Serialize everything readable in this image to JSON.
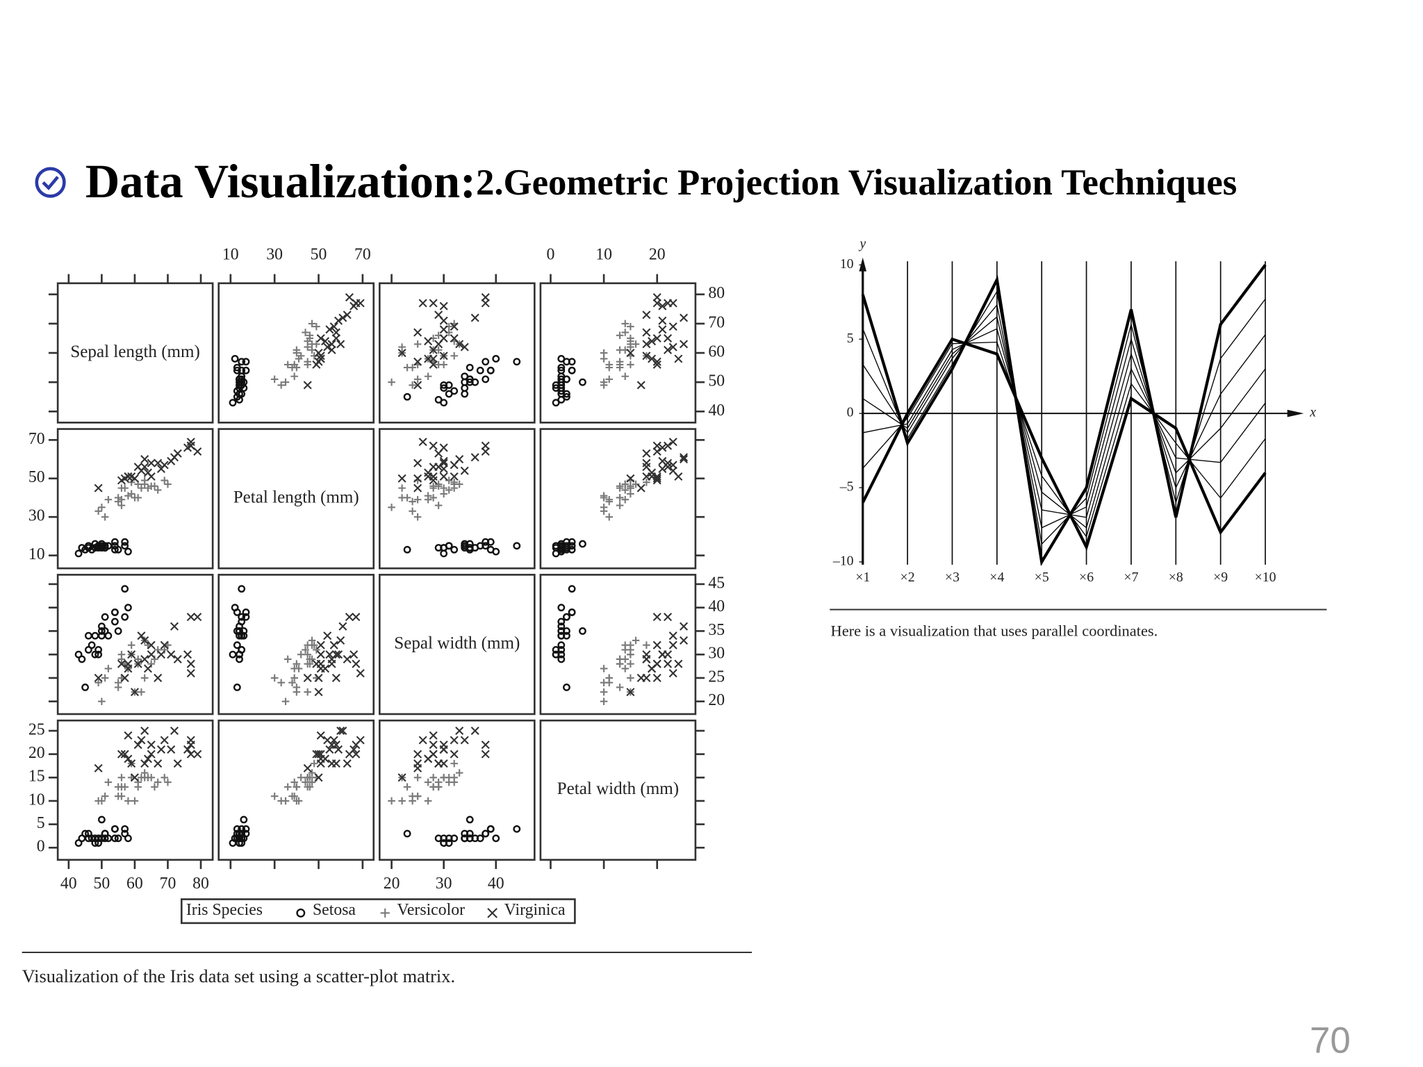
{
  "slide": {
    "title": "Data Visualization:",
    "subtitle": "2.Geometric Projection Visualization Techniques",
    "page_number": "70"
  },
  "chart_data": [
    {
      "type": "scatter-matrix",
      "variables": [
        {
          "name": "Sepal length (mm)",
          "xlim": [
            36.7,
            83.6
          ],
          "ylim": [
            36.2,
            83.8
          ],
          "xticks": [
            40,
            50,
            60,
            70,
            80
          ],
          "yticks": [
            40,
            50,
            60,
            70,
            80
          ]
        },
        {
          "name": "Petal length (mm)",
          "xlim": [
            4.6,
            75
          ],
          "ylim": [
            3.3,
            75.7
          ],
          "xticks": [
            10,
            30,
            50,
            70
          ],
          "yticks": [
            10,
            30,
            50,
            70
          ]
        },
        {
          "name": "Sepal width (mm)",
          "xlim": [
            17.7,
            47.4
          ],
          "ylim": [
            17.3,
            47
          ],
          "xticks": [
            20,
            30,
            40
          ],
          "yticks": [
            20,
            25,
            30,
            35,
            40,
            45
          ]
        },
        {
          "name": "Petal width (mm)",
          "xlim": [
            -1.9,
            27.2
          ],
          "ylim": [
            -2.6,
            27.2
          ],
          "xticks": [
            0,
            10,
            20
          ],
          "yticks": [
            0,
            5,
            10,
            15,
            20,
            25
          ]
        }
      ],
      "legend_title": "Iris Species",
      "species": [
        {
          "name": "Setosa",
          "marker": "circle",
          "color": "#111111",
          "points": [
            [
              51,
              14,
              35,
              2
            ],
            [
              49,
              14,
              30,
              2
            ],
            [
              47,
              13,
              32,
              2
            ],
            [
              46,
              15,
              31,
              2
            ],
            [
              50,
              14,
              36,
              2
            ],
            [
              54,
              17,
              39,
              4
            ],
            [
              46,
              14,
              34,
              3
            ],
            [
              50,
              15,
              34,
              2
            ],
            [
              44,
              14,
              29,
              2
            ],
            [
              49,
              15,
              31,
              1
            ],
            [
              54,
              15,
              37,
              2
            ],
            [
              48,
              16,
              34,
              2
            ],
            [
              48,
              14,
              30,
              1
            ],
            [
              43,
              11,
              30,
              1
            ],
            [
              58,
              12,
              40,
              2
            ],
            [
              57,
              15,
              44,
              4
            ],
            [
              54,
              13,
              39,
              4
            ],
            [
              51,
              14,
              35,
              3
            ],
            [
              57,
              17,
              38,
              3
            ],
            [
              51,
              15,
              38,
              3
            ],
            [
              45,
              13,
              23,
              3
            ],
            [
              50,
              16,
              35,
              6
            ],
            [
              52,
              15,
              34,
              2
            ],
            [
              55,
              13,
              35,
              2
            ]
          ]
        },
        {
          "name": "Versicolor",
          "marker": "plus",
          "color": "#7a7a7a",
          "points": [
            [
              70,
              47,
              32,
              14
            ],
            [
              64,
              45,
              32,
              15
            ],
            [
              69,
              49,
              31,
              15
            ],
            [
              55,
              40,
              23,
              13
            ],
            [
              65,
              46,
              28,
              15
            ],
            [
              57,
              45,
              28,
              13
            ],
            [
              63,
              47,
              33,
              16
            ],
            [
              49,
              33,
              24,
              10
            ],
            [
              66,
              46,
              29,
              13
            ],
            [
              52,
              39,
              27,
              14
            ],
            [
              50,
              35,
              20,
              10
            ],
            [
              59,
              42,
              30,
              15
            ],
            [
              60,
              40,
              22,
              10
            ],
            [
              61,
              47,
              29,
              14
            ],
            [
              56,
              36,
              29,
              13
            ],
            [
              67,
              44,
              31,
              14
            ],
            [
              56,
              45,
              30,
              15
            ],
            [
              58,
              41,
              27,
              10
            ],
            [
              62,
              45,
              22,
              15
            ],
            [
              56,
              39,
              25,
              11
            ],
            [
              59,
              48,
              32,
              18
            ],
            [
              61,
              40,
              28,
              13
            ],
            [
              63,
              49,
              25,
              15
            ],
            [
              55,
              38,
              24,
              11
            ],
            [
              51,
              30,
              25,
              11
            ]
          ]
        },
        {
          "name": "Virginica",
          "marker": "cross",
          "color": "#333333",
          "points": [
            [
              63,
              60,
              33,
              25
            ],
            [
              58,
              51,
              27,
              19
            ],
            [
              71,
              59,
              30,
              21
            ],
            [
              63,
              56,
              29,
              18
            ],
            [
              65,
              58,
              30,
              22
            ],
            [
              76,
              66,
              30,
              21
            ],
            [
              49,
              45,
              25,
              17
            ],
            [
              73,
              63,
              29,
              18
            ],
            [
              67,
              58,
              25,
              18
            ],
            [
              72,
              61,
              36,
              25
            ],
            [
              65,
              51,
              32,
              20
            ],
            [
              64,
              53,
              27,
              19
            ],
            [
              68,
              55,
              30,
              21
            ],
            [
              57,
              50,
              25,
              20
            ],
            [
              58,
              51,
              28,
              24
            ],
            [
              77,
              67,
              38,
              22
            ],
            [
              77,
              69,
              26,
              23
            ],
            [
              60,
              50,
              22,
              15
            ],
            [
              69,
              57,
              32,
              23
            ],
            [
              56,
              49,
              28,
              20
            ],
            [
              77,
              67,
              28,
              20
            ],
            [
              79,
              64,
              38,
              20
            ],
            [
              61,
              56,
              28,
              22
            ],
            [
              62,
              54,
              34,
              23
            ],
            [
              59,
              51,
              30,
              18
            ]
          ]
        }
      ],
      "caption": "Visualization of the Iris data set using a scatter-plot matrix."
    },
    {
      "type": "parallel",
      "categories": [
        "×1",
        "×2",
        "×3",
        "×4",
        "×5",
        "×6",
        "×7",
        "×8",
        "×9",
        "×10"
      ],
      "x_label": "x",
      "y_label": "y",
      "ylim": [
        -10,
        10
      ],
      "yticks": [
        {
          "value": -10,
          "label": "–10"
        },
        {
          "value": -5,
          "label": "–5"
        },
        0,
        5,
        10
      ],
      "lines": [
        [
          8,
          -2,
          3,
          9,
          -10,
          -5,
          7,
          -7,
          6,
          10
        ],
        [
          5.7,
          -1.7,
          3.3,
          8.2,
          -8.8,
          -5.7,
          6,
          -6,
          3.7,
          7.7
        ],
        [
          3.3,
          -1.3,
          3.7,
          7.3,
          -7.7,
          -6.3,
          5,
          -5,
          1.3,
          5.3
        ],
        [
          1,
          -1,
          4,
          6.5,
          -6.5,
          -7,
          4,
          -4,
          -1,
          3
        ],
        [
          -1.3,
          -0.7,
          4.3,
          5.7,
          -5.3,
          -7.7,
          3,
          -3,
          -3.3,
          0.7
        ],
        [
          -3.7,
          -0.3,
          4.7,
          4.8,
          -4.2,
          -8.3,
          2,
          -2,
          -5.7,
          -1.7
        ],
        [
          -6,
          0,
          5,
          4,
          -3,
          -9,
          1,
          -1,
          -8,
          -4
        ]
      ],
      "color": "#000000",
      "caption": "Here is a visualization that uses parallel coordinates."
    }
  ]
}
